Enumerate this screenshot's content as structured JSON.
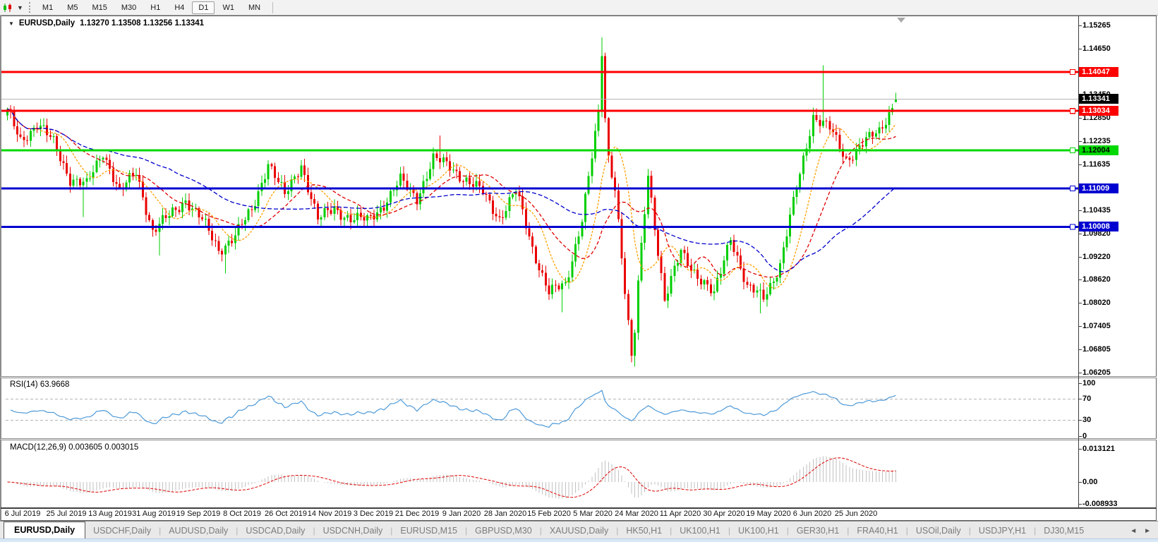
{
  "toolbar": {
    "tool_icon": "candlestick-chart-tool",
    "dropdown_caret": "▼",
    "timeframes": [
      "M1",
      "M5",
      "M15",
      "M30",
      "H1",
      "H4",
      "D1",
      "W1",
      "MN"
    ],
    "active_timeframe": "D1"
  },
  "chart_header": {
    "collapse_icon": "▼",
    "symbol_label": "EURUSD,Daily",
    "ohlc": "1.13270 1.13508 1.13256 1.13341"
  },
  "price_axis": {
    "ticks": [
      "1.15265",
      "1.14650",
      "1.13450",
      "1.12850",
      "1.12235",
      "1.11635",
      "1.10435",
      "1.09820",
      "1.09220",
      "1.08620",
      "1.08020",
      "1.07405",
      "1.06805",
      "1.06205"
    ]
  },
  "rsi": {
    "label": "RSI(14) 63.9668",
    "period": 14,
    "value": "63.9668",
    "ticks": [
      "100",
      "70",
      "30",
      "0"
    ],
    "levels": [
      70,
      30
    ],
    "line_color": "#4e9ad8",
    "level_color": "#b4b4b4"
  },
  "macd": {
    "label": "MACD(12,26,9) 0.003605 0.003015",
    "fast": 12,
    "slow": 26,
    "signal": 9,
    "value": "0.003605",
    "signal_value": "0.003015",
    "ticks": [
      "0.013121",
      "0.00",
      "-0.008933"
    ],
    "histogram_color": "#c2c2c2",
    "signal_color": "#e00000"
  },
  "dates": [
    "6 Jul 2019",
    "25 Jul 2019",
    "13 Aug 2019",
    "31 Aug 2019",
    "19 Sep 2019",
    "8 Oct 2019",
    "26 Oct 2019",
    "14 Nov 2019",
    "3 Dec 2019",
    "21 Dec 2019",
    "9 Jan 2020",
    "28 Jan 2020",
    "15 Feb 2020",
    "5 Mar 2020",
    "24 Mar 2020",
    "11 Apr 2020",
    "30 Apr 2020",
    "19 May 2020",
    "6 Jun 2020",
    "25 Jun 2020"
  ],
  "tabs": {
    "items": [
      {
        "label": "EURUSD,Daily",
        "active": true
      },
      {
        "label": "USDCHF,Daily",
        "active": false
      },
      {
        "label": "AUDUSD,Daily",
        "active": false
      },
      {
        "label": "USDCAD,Daily",
        "active": false
      },
      {
        "label": "USDCNH,Daily",
        "active": false
      },
      {
        "label": "EURUSD,M15",
        "active": false
      },
      {
        "label": "GBPUSD,M30",
        "active": false
      },
      {
        "label": "XAUUSD,Daily",
        "active": false
      },
      {
        "label": "HK50,H1",
        "active": false
      },
      {
        "label": "UK100,H1",
        "active": false
      },
      {
        "label": "UK100,H1",
        "active": false
      },
      {
        "label": "GER30,H1",
        "active": false
      },
      {
        "label": "FRA40,H1",
        "active": false
      },
      {
        "label": "USOil,Daily",
        "active": false
      },
      {
        "label": "USDJPY,H1",
        "active": false
      },
      {
        "label": "DJ30,M15",
        "active": false
      }
    ],
    "nav_left": "◄",
    "nav_right": "►"
  },
  "chart_data": {
    "type": "candlestick",
    "symbol": "EURUSD",
    "timeframe": "Daily",
    "candle_count": 270,
    "start_close": 1.13,
    "weekly_closes": [
      1.1227,
      1.1269,
      1.1221,
      1.1128,
      1.1108,
      1.1199,
      1.109,
      1.1145,
      1.099,
      1.1028,
      1.1073,
      1.1017,
      1.0941,
      1.0979,
      1.1042,
      1.117,
      1.108,
      1.1166,
      1.1018,
      1.1051,
      1.1021,
      1.1018,
      1.106,
      1.1121,
      1.1078,
      1.1177,
      1.116,
      1.1122,
      1.109,
      1.1024,
      1.1094,
      1.0946,
      1.0831,
      1.0846,
      1.1026,
      1.1288,
      1.1109,
      1.0654,
      1.114,
      1.0808,
      1.0935,
      1.0875,
      1.082,
      1.098,
      1.0838,
      1.082,
      1.0901,
      1.1101,
      1.1292,
      1.1256,
      1.1177,
      1.1219,
      1.1248,
      1.1334
    ],
    "close_overrides": [
      [
        180,
        1.1446
      ],
      [
        181,
        1.1284
      ],
      [
        190,
        1.0725
      ]
    ],
    "spikes_high": [
      [
        131,
        1.1239
      ],
      [
        180,
        1.1495
      ],
      [
        247,
        1.1422
      ]
    ],
    "spikes_low": [
      [
        23,
        1.1027
      ],
      [
        46,
        1.0926
      ],
      [
        66,
        1.0879
      ],
      [
        168,
        1.0778
      ],
      [
        190,
        1.0636
      ],
      [
        228,
        1.0775
      ]
    ],
    "last_candle": {
      "open": 1.1327,
      "high": 1.13508,
      "low": 1.13256,
      "close": 1.13341
    },
    "bull_color": "#00ce00",
    "bear_color": "#ea0000",
    "price_top": "1.15265",
    "price_bottom": "1.06205",
    "hlines": [
      {
        "price": "1.14047",
        "color": "#fe0000",
        "text_color": "#ffffff"
      },
      {
        "price": "1.13034",
        "color": "#fe0000",
        "text_color": "#ffffff"
      },
      {
        "price": "1.12004",
        "color": "#00d800",
        "text_color": "#000000"
      },
      {
        "price": "1.11009",
        "color": "#0000d0",
        "text_color": "#ffffff"
      },
      {
        "price": "1.10008",
        "color": "#0000d0",
        "text_color": "#ffffff"
      }
    ],
    "current_price": {
      "price": "1.13341",
      "line_color": "#b5b5b5",
      "badge_color": "#000000",
      "text_color": "#ffffff"
    },
    "moving_averages": [
      {
        "period": 10,
        "color": "#ffa000",
        "dash": "3,2"
      },
      {
        "period": 20,
        "color": "#e00000",
        "dash": "5,3"
      },
      {
        "period": 50,
        "color": "#0000cc",
        "dash": "6,3"
      }
    ]
  }
}
